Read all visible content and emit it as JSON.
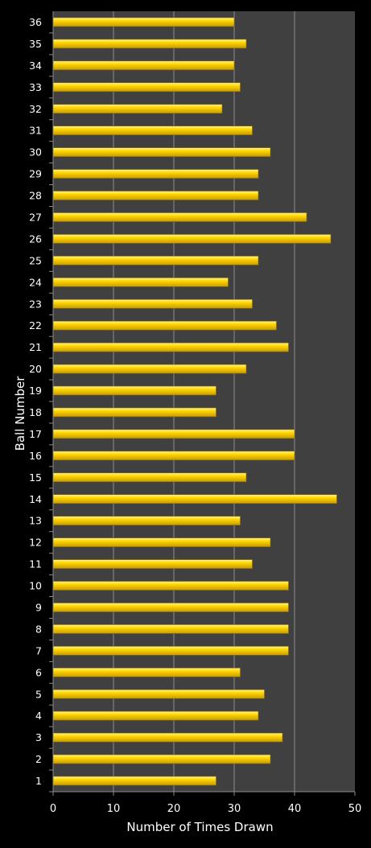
{
  "chart_data": {
    "type": "bar",
    "orientation": "horizontal",
    "xlabel": "Number of Times Drawn",
    "ylabel": "Ball Number",
    "xlim": [
      0,
      50
    ],
    "x_ticks": [
      "0",
      "10",
      "20",
      "30",
      "40",
      "50"
    ],
    "grid": "vertical",
    "legend": "none",
    "categories": [
      "1",
      "2",
      "3",
      "4",
      "5",
      "6",
      "7",
      "8",
      "9",
      "10",
      "11",
      "12",
      "13",
      "14",
      "15",
      "16",
      "17",
      "18",
      "19",
      "20",
      "21",
      "22",
      "23",
      "24",
      "25",
      "26",
      "27",
      "28",
      "29",
      "30",
      "31",
      "32",
      "33",
      "34",
      "35",
      "36"
    ],
    "values": [
      27,
      36,
      38,
      34,
      35,
      31,
      39,
      39,
      39,
      39,
      33,
      36,
      31,
      47,
      32,
      40,
      40,
      27,
      27,
      32,
      39,
      37,
      33,
      29,
      34,
      46,
      42,
      34,
      34,
      36,
      33,
      28,
      31,
      30,
      32,
      30
    ]
  },
  "colors": {
    "page_background": "#000000",
    "plot_background": "#404040",
    "gridline": "#8c8c8c",
    "bar_fill": "#ffd700",
    "bar_highlight": "#fff3a0",
    "bar_shadow": "#c89b00",
    "text": "#ffffff"
  }
}
